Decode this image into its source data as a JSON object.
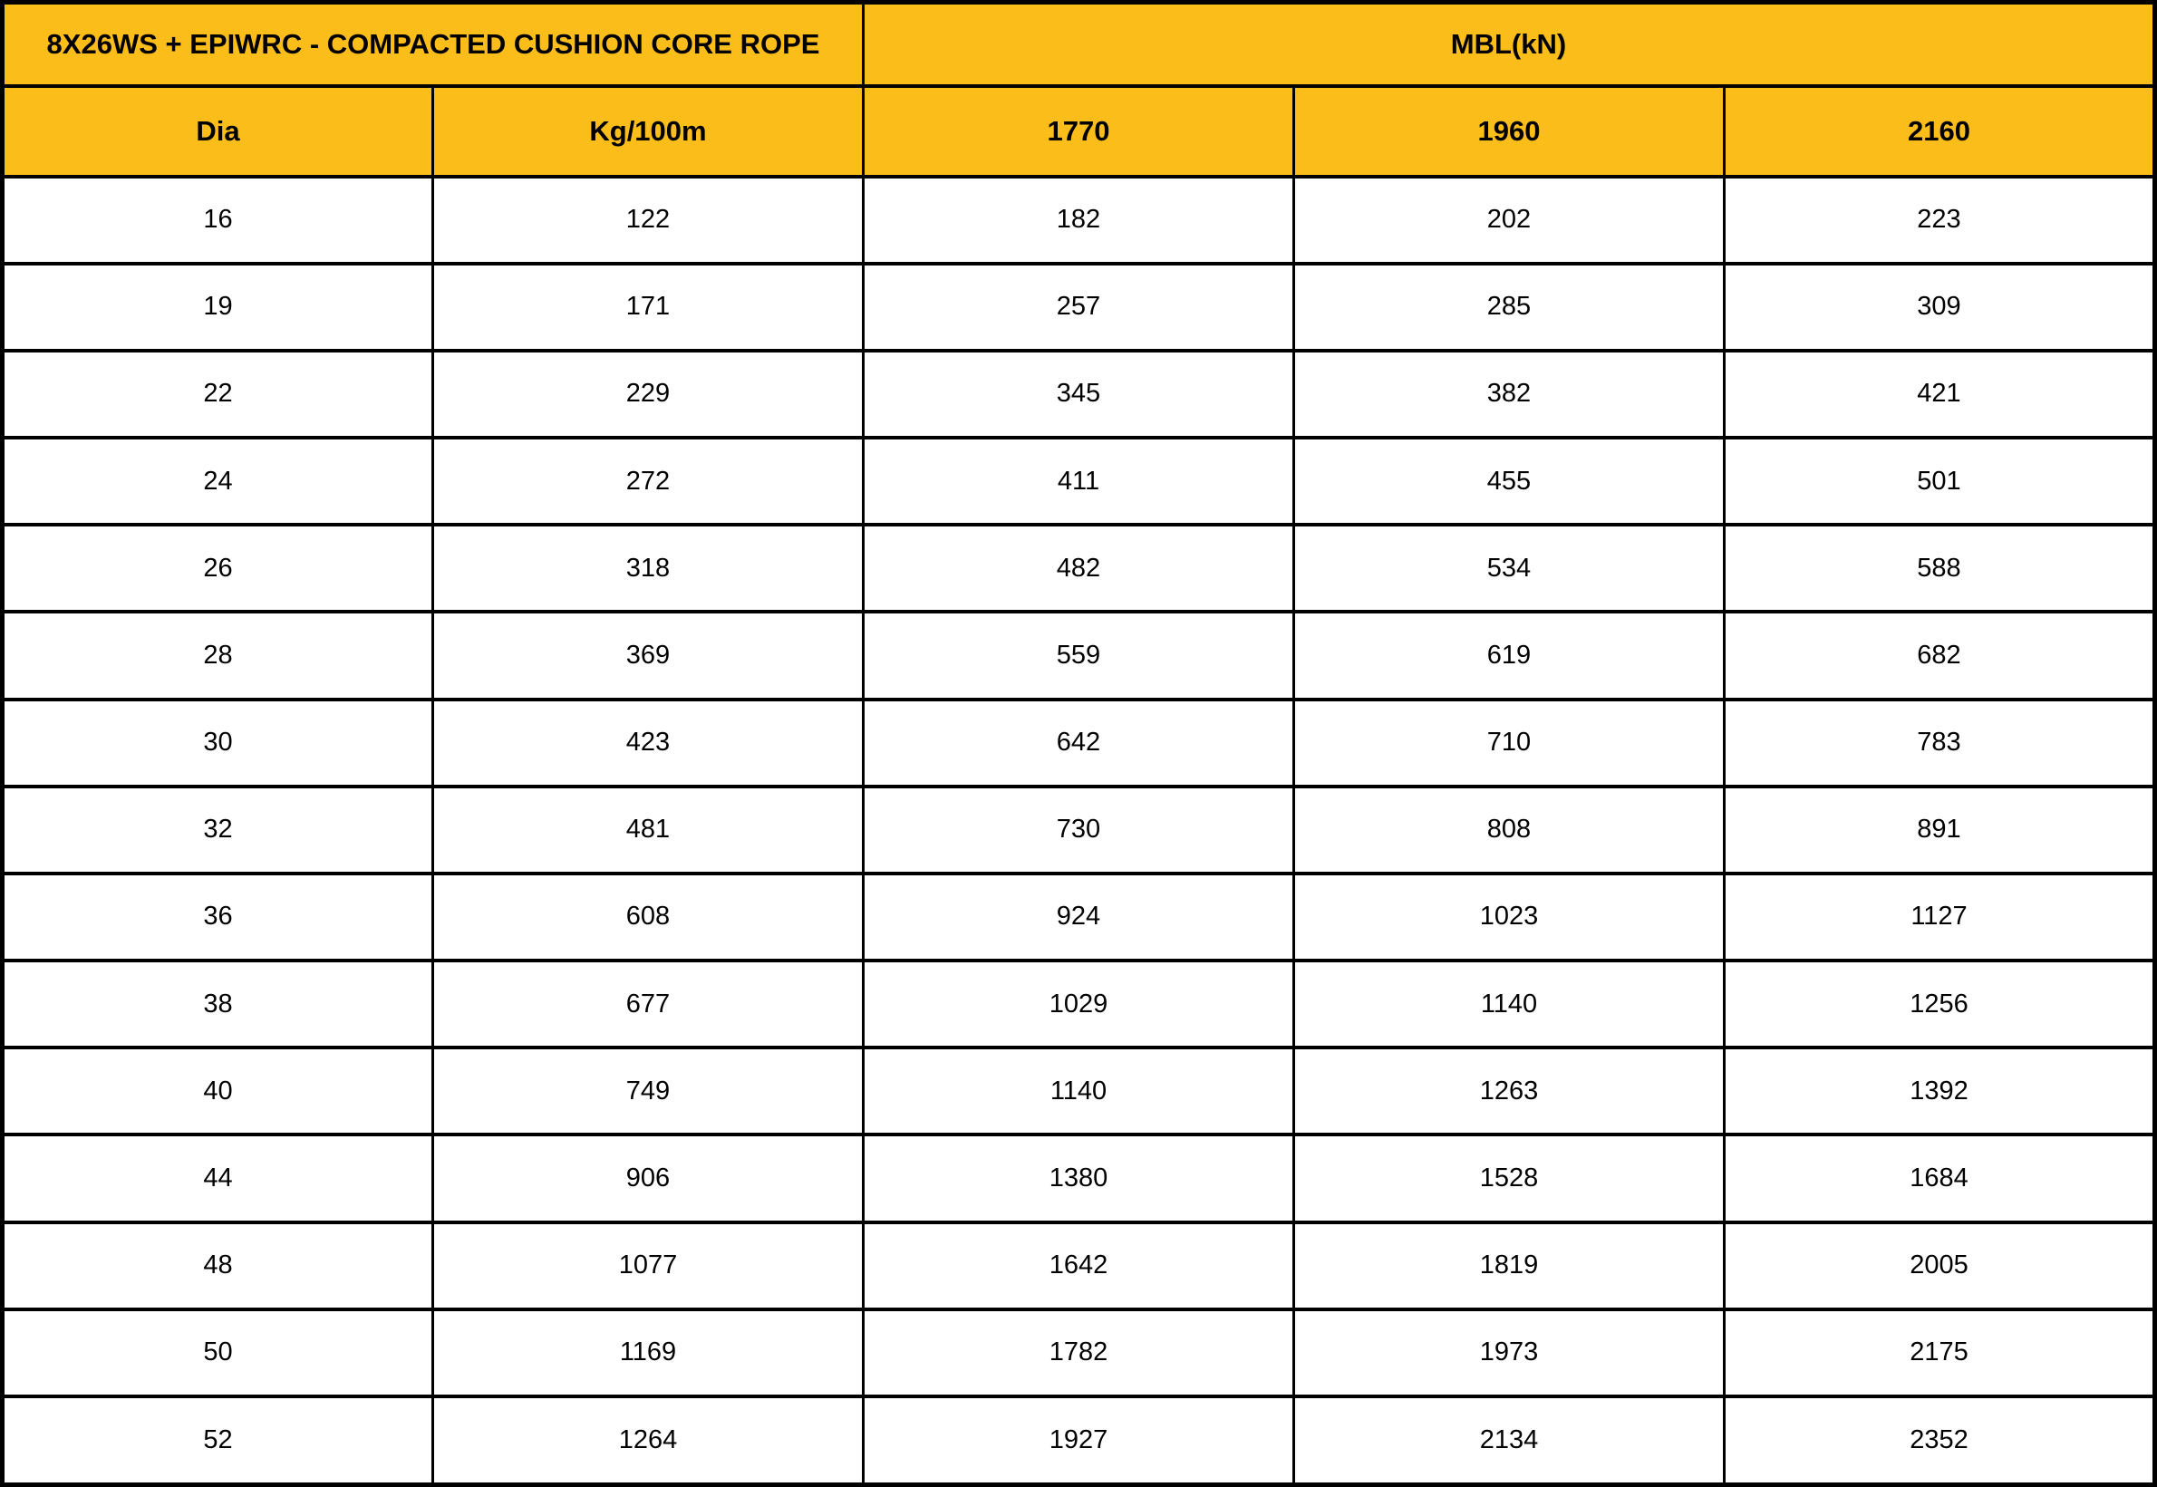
{
  "colors": {
    "header_bg": "#FBBD19",
    "border": "#000000",
    "cell_bg": "#FFFFFF",
    "text": "#000000"
  },
  "table": {
    "group_headers": [
      {
        "label": "8X26WS + EPIWRC - COMPACTED CUSHION CORE ROPE",
        "span": 2
      },
      {
        "label": "MBL(kN)",
        "span": 3
      }
    ],
    "column_headers": [
      "Dia",
      "Kg/100m",
      "1770",
      "1960",
      "2160"
    ]
  },
  "chart_data": {
    "type": "table",
    "title": "8X26WS + EPIWRC - COMPACTED CUSHION CORE ROPE",
    "group_header": "MBL(kN)",
    "columns": [
      "Dia",
      "Kg/100m",
      "1770",
      "1960",
      "2160"
    ],
    "rows": [
      [
        16,
        122,
        182,
        202,
        223
      ],
      [
        19,
        171,
        257,
        285,
        309
      ],
      [
        22,
        229,
        345,
        382,
        421
      ],
      [
        24,
        272,
        411,
        455,
        501
      ],
      [
        26,
        318,
        482,
        534,
        588
      ],
      [
        28,
        369,
        559,
        619,
        682
      ],
      [
        30,
        423,
        642,
        710,
        783
      ],
      [
        32,
        481,
        730,
        808,
        891
      ],
      [
        36,
        608,
        924,
        1023,
        1127
      ],
      [
        38,
        677,
        1029,
        1140,
        1256
      ],
      [
        40,
        749,
        1140,
        1263,
        1392
      ],
      [
        44,
        906,
        1380,
        1528,
        1684
      ],
      [
        48,
        1077,
        1642,
        1819,
        2005
      ],
      [
        50,
        1169,
        1782,
        1973,
        2175
      ],
      [
        52,
        1264,
        1927,
        2134,
        2352
      ]
    ]
  }
}
